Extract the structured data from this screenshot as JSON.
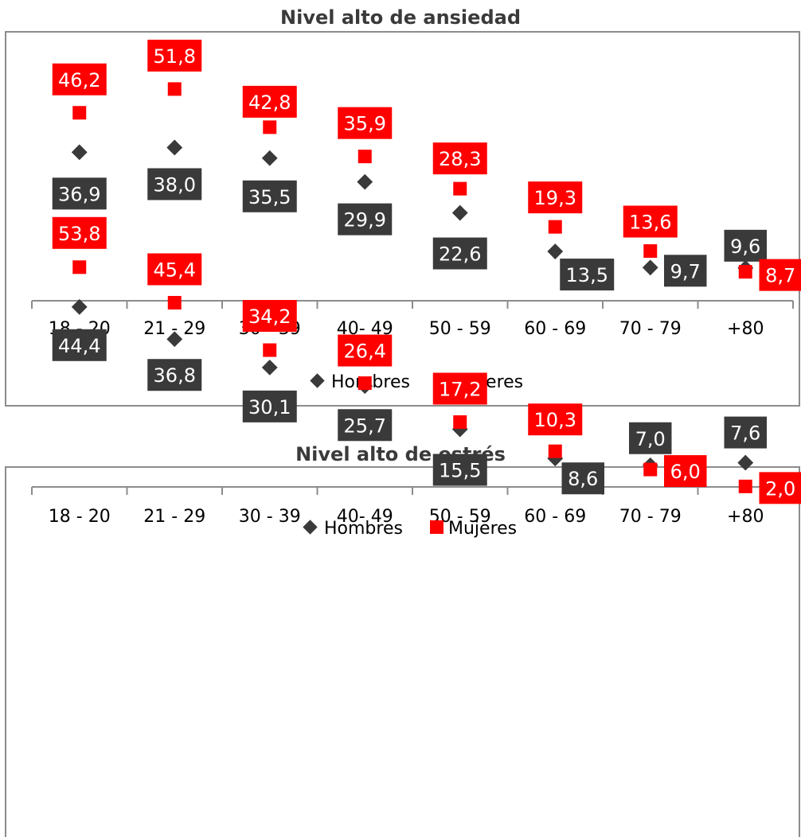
{
  "colors": {
    "hombres": "#3a3a3a",
    "mujeres": "#ff0000",
    "frame": "#8c8c8c",
    "axis": "#8c8c8c"
  },
  "chart_data": [
    {
      "type": "scatter",
      "title": "Nivel alto de ansiedad",
      "categories": [
        "18 - 20",
        "21 - 29",
        "30 - 39",
        "40- 49",
        "50 - 59",
        "60 - 69",
        "70 - 79",
        "+80"
      ],
      "series": [
        {
          "name": "Hombres",
          "values": [
            36.9,
            38.0,
            35.5,
            29.9,
            22.6,
            13.5,
            9.7,
            9.6
          ],
          "labels": [
            "36,9",
            "38,0",
            "35,5",
            "29,9",
            "22,6",
            "13,5",
            "9,7",
            "9,6"
          ]
        },
        {
          "name": "Mujeres",
          "values": [
            46.2,
            51.8,
            42.8,
            35.9,
            28.3,
            19.3,
            13.6,
            8.7
          ],
          "labels": [
            "46,2",
            "51,8",
            "42,8",
            "35,9",
            "28,3",
            "19,3",
            "13,6",
            "8,7"
          ]
        }
      ],
      "legend": "bottom",
      "grid": false
    },
    {
      "type": "scatter",
      "title": "Nivel alto de estrés",
      "categories": [
        "18 - 20",
        "21 - 29",
        "30 - 39",
        "40- 49",
        "50 - 59",
        "60 - 69",
        "70 - 79",
        "+80"
      ],
      "series": [
        {
          "name": "Hombres",
          "values": [
            44.4,
            36.8,
            30.1,
            25.7,
            15.5,
            8.6,
            7.0,
            7.6
          ],
          "labels": [
            "44,4",
            "36,8",
            "30,1",
            "25,7",
            "15,5",
            "8,6",
            "7,0",
            "7,6"
          ]
        },
        {
          "name": "Mujeres",
          "values": [
            53.8,
            45.4,
            34.2,
            26.4,
            17.2,
            10.3,
            6.0,
            2.0
          ],
          "labels": [
            "53,8",
            "45,4",
            "34,2",
            "26,4",
            "17,2",
            "10,3",
            "6,0",
            "2,0"
          ]
        }
      ],
      "legend": "bottom",
      "grid": false
    }
  ]
}
